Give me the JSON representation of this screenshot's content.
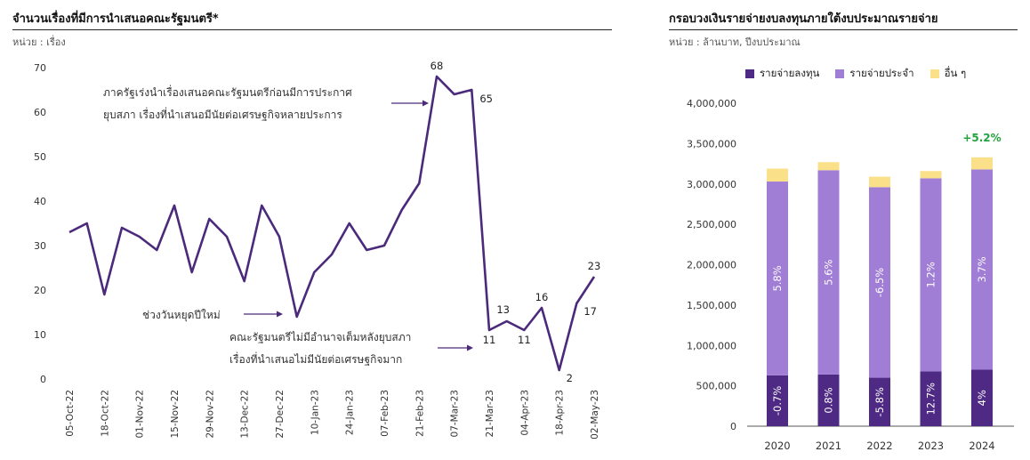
{
  "left": {
    "title": "จำนวนเรื่องที่มีการนำเสนอคณะรัฐมนตรี*",
    "unit": "หน่วย : เรื่อง",
    "annotations": {
      "line1": "ภาครัฐเร่งนำเรื่องเสนอคณะรัฐมนตรีก่อนมีการประกาศ",
      "line2": "ยุบสภา  เรื่องที่นำเสนอมีนัยต่อเศรษฐกิจหลายประการ",
      "holiday": "ช่วงวันหยุดปีใหม่",
      "line3": "คณะรัฐมนตรีไม่มีอำนาจเต็มหลังยุบสภา",
      "line4": "เรื่องที่นำเสนอไม่มีนัยต่อเศรษฐกิจมาก"
    }
  },
  "right": {
    "title": "กรอบวงเงินรายจ่ายงบลงทุนภายใต้งบประมาณรายจ่าย",
    "unit": "หน่วย : ล้านบาท, ปีงบประมาณ",
    "top_label": "+5.2%"
  },
  "colors": {
    "line": "#4b2a7b",
    "capital": "#4e2a84",
    "current": "#a17ed6",
    "other": "#fbe08a",
    "growth": "#22a33f"
  },
  "chart_data": [
    {
      "type": "line",
      "title": "จำนวนเรื่องที่มีการนำเสนอคณะรัฐมนตรี*",
      "ylabel": "หน่วย : เรื่อง",
      "ylim": [
        0,
        70
      ],
      "yticks": [
        0,
        10,
        20,
        30,
        40,
        50,
        60,
        70
      ],
      "x": [
        "05-Oct-22",
        "12-Oct-22",
        "18-Oct-22",
        "25-Oct-22",
        "01-Nov-22",
        "08-Nov-22",
        "15-Nov-22",
        "22-Nov-22",
        "29-Nov-22",
        "06-Dec-22",
        "13-Dec-22",
        "20-Dec-22",
        "27-Dec-22",
        "03-Jan-23",
        "10-Jan-23",
        "17-Jan-23",
        "24-Jan-23",
        "31-Jan-23",
        "07-Feb-23",
        "14-Feb-23",
        "21-Feb-23",
        "28-Feb-23",
        "07-Mar-23",
        "14-Mar-23",
        "21-Mar-23",
        "28-Mar-23",
        "04-Apr-23",
        "11-Apr-23",
        "18-Apr-23",
        "25-Apr-23",
        "02-May-23"
      ],
      "xtick_labels": [
        "05-Oct-22",
        "18-Oct-22",
        "01-Nov-22",
        "15-Nov-22",
        "29-Nov-22",
        "13-Dec-22",
        "27-Dec-22",
        "10-Jan-23",
        "24-Jan-23",
        "07-Feb-23",
        "21-Feb-23",
        "07-Mar-23",
        "21-Mar-23",
        "04-Apr-23",
        "18-Apr-23",
        "02-May-23"
      ],
      "values": [
        33,
        35,
        19,
        34,
        32,
        29,
        39,
        24,
        36,
        32,
        22,
        39,
        32,
        14,
        24,
        28,
        35,
        29,
        30,
        38,
        44,
        68,
        64,
        65,
        11,
        13,
        11,
        16,
        2,
        17,
        23
      ],
      "point_labels": [
        {
          "i": 21,
          "text": "68",
          "pos": "above"
        },
        {
          "i": 23,
          "text": "65",
          "pos": "below-right"
        },
        {
          "i": 24,
          "text": "11",
          "pos": "below"
        },
        {
          "i": 25,
          "text": "13",
          "pos": "above-left"
        },
        {
          "i": 26,
          "text": "11",
          "pos": "below"
        },
        {
          "i": 27,
          "text": "16",
          "pos": "above"
        },
        {
          "i": 28,
          "text": "2",
          "pos": "right"
        },
        {
          "i": 29,
          "text": "17",
          "pos": "right"
        },
        {
          "i": 30,
          "text": "23",
          "pos": "above"
        }
      ],
      "grid": false
    },
    {
      "type": "bar",
      "stacked": true,
      "title": "กรอบวงเงินรายจ่ายงบลงทุนภายใต้งบประมาณรายจ่าย",
      "ylabel": "หน่วย : ล้านบาท, ปีงบประมาณ",
      "categories": [
        "2020",
        "2021",
        "2022",
        "2023",
        "2024"
      ],
      "ylim": [
        0,
        4000000
      ],
      "yticks": [
        0,
        500000,
        1000000,
        1500000,
        2000000,
        2500000,
        3000000,
        3500000,
        4000000
      ],
      "ytick_labels": [
        "0",
        "500,000",
        "1,000,000",
        "1,500,000",
        "2,000,000",
        "2,500,000",
        "3,000,000",
        "3,500,000",
        "4,000,000"
      ],
      "legend": "top",
      "series": [
        {
          "name": "รายจ่ายลงทุน",
          "values": [
            630000,
            640000,
            600000,
            680000,
            700000
          ],
          "labels": [
            "-0.7%",
            "0.8%",
            "-5.8%",
            "12.7%",
            "4%"
          ]
        },
        {
          "name": "รายจ่ายประจำ",
          "values": [
            2400000,
            2530000,
            2360000,
            2390000,
            2480000
          ],
          "labels": [
            "5.8%",
            "5.6%",
            "-6.5%",
            "1.2%",
            "3.7%"
          ]
        },
        {
          "name": "อื่น ๆ",
          "values": [
            160000,
            100000,
            130000,
            90000,
            150000
          ],
          "labels": [
            "",
            "",
            "",
            "",
            ""
          ]
        }
      ],
      "grid": false
    }
  ]
}
